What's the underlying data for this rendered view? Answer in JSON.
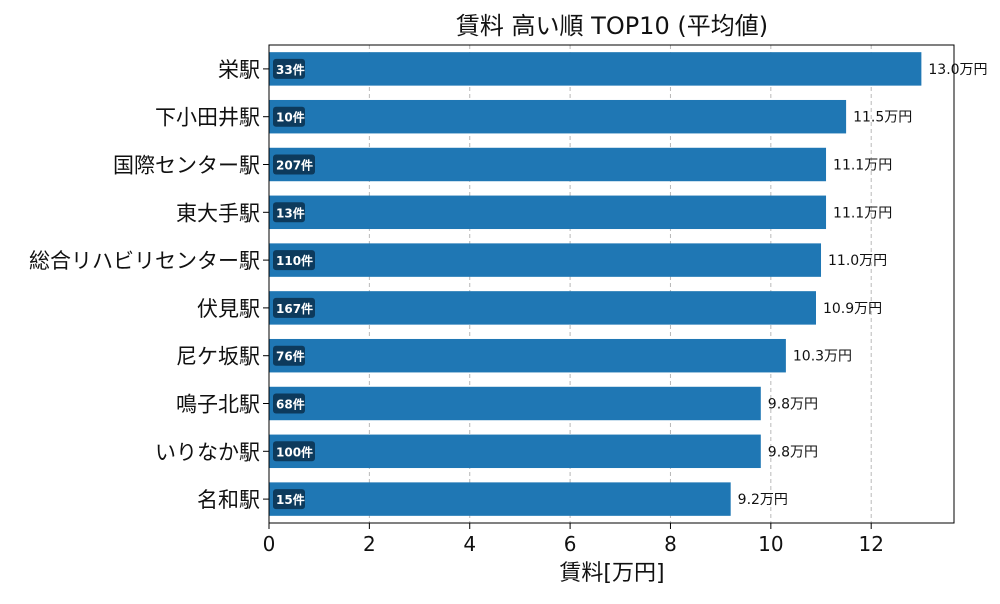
{
  "chart_data": {
    "type": "bar",
    "orientation": "horizontal",
    "title": "賃料 高い順 TOP10 (平均値)",
    "xlabel": "賃料[万円]",
    "ylabel": "",
    "xlim": [
      0,
      13.65
    ],
    "x_ticks": [
      0,
      2,
      4,
      6,
      8,
      10,
      12
    ],
    "grid": "x-dashed",
    "bar_color": "#1f77b4",
    "badge_color": "#0d3a5c",
    "categories": [
      "栄駅",
      "下小田井駅",
      "国際センター駅",
      "東大手駅",
      "総合リハビリセンター駅",
      "伏見駅",
      "尼ケ坂駅",
      "鳴子北駅",
      "いりなか駅",
      "名和駅"
    ],
    "values": [
      13.0,
      11.5,
      11.1,
      11.1,
      11.0,
      10.9,
      10.3,
      9.8,
      9.8,
      9.2
    ],
    "value_labels": [
      "13.0万円",
      "11.5万円",
      "11.1万円",
      "11.1万円",
      "11.0万円",
      "10.9万円",
      "10.3万円",
      "9.8万円",
      "9.8万円",
      "9.2万円"
    ],
    "count_labels": [
      "33件",
      "10件",
      "207件",
      "13件",
      "110件",
      "167件",
      "76件",
      "68件",
      "100件",
      "15件"
    ]
  }
}
